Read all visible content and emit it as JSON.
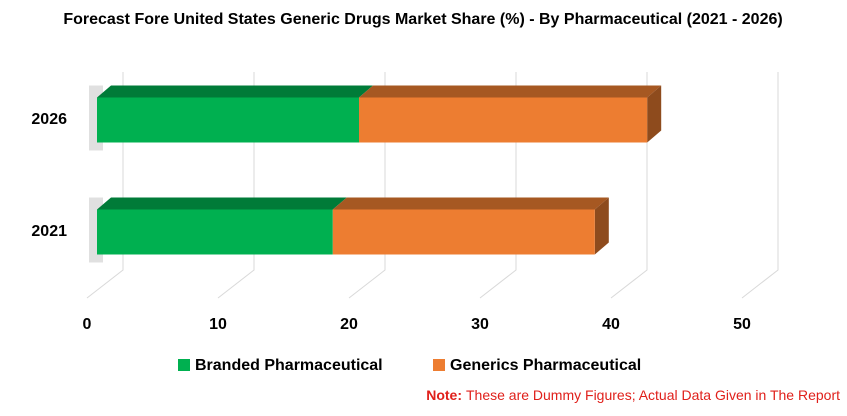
{
  "chart_data": {
    "type": "bar",
    "orientation": "horizontal",
    "stacked": true,
    "title": "Forecast Fore United States Generic Drugs Market Share (%) - By Pharmaceutical (2021 - 2026)",
    "categories": [
      "2021",
      "2026"
    ],
    "series": [
      {
        "name": "Branded Pharmaceutical",
        "color": "#00b050",
        "values": [
          18,
          20
        ]
      },
      {
        "name": "Generics Pharmaceutical",
        "color": "#ed7d31",
        "values": [
          20,
          22
        ]
      }
    ],
    "xlim": [
      0,
      50
    ],
    "xticks": [
      0,
      10,
      20,
      30,
      40,
      50
    ],
    "grid": true,
    "legend": "bottom"
  },
  "note": {
    "label": "Note:",
    "text": "These are Dummy Figures; Actual Data Given in The Report"
  }
}
